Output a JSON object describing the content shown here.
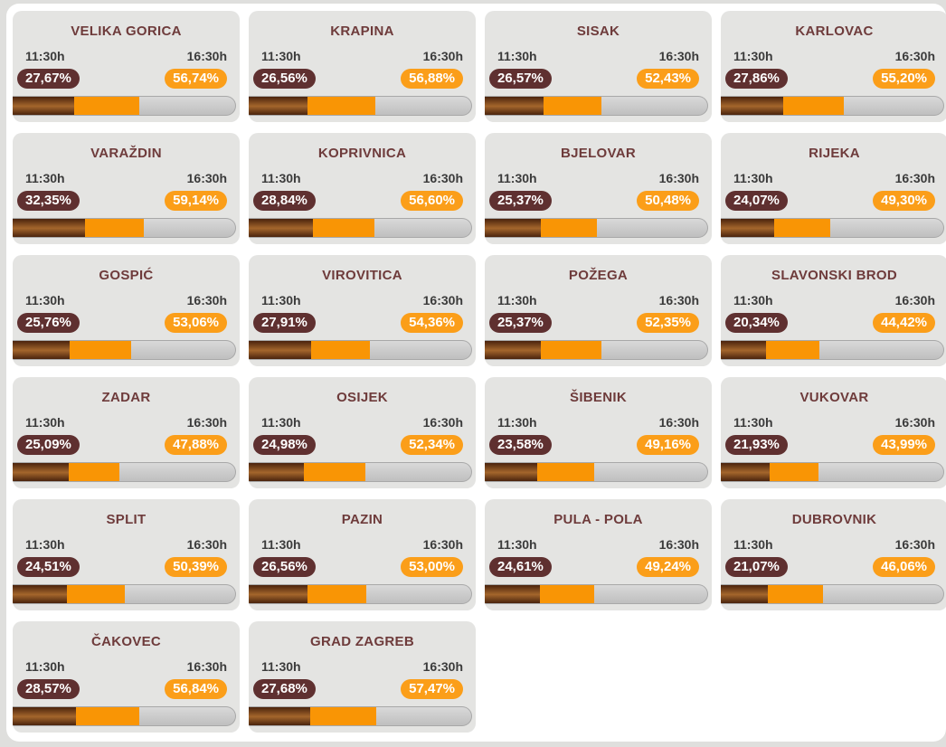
{
  "colors": {
    "page_bg": "#dfdfdd",
    "panel_bg": "#ffffff",
    "card_bg": "#e4e4e2",
    "title_text": "#6e3b3b",
    "time_text": "#3b3b3b",
    "badge_text": "#ffffff",
    "badge_early_bg": "#5f3030",
    "badge_late_bg": "#fb9e19",
    "bar_late": "#f99505",
    "bar_early_dark": "#4a230d",
    "bar_early_light": "#a4662c",
    "bar_track_light": "#d9d9d9",
    "bar_track_dark": "#bfbfbf",
    "bar_border": "#a8a8a8"
  },
  "times": {
    "early_label": "11:30h",
    "late_label": "16:30h"
  },
  "cards": [
    {
      "name": "VELIKA GORICA",
      "early": "27,67%",
      "late": "56,74%"
    },
    {
      "name": "KRAPINA",
      "early": "26,56%",
      "late": "56,88%"
    },
    {
      "name": "SISAK",
      "early": "26,57%",
      "late": "52,43%"
    },
    {
      "name": "KARLOVAC",
      "early": "27,86%",
      "late": "55,20%"
    },
    {
      "name": "VARAŽDIN",
      "early": "32,35%",
      "late": "59,14%"
    },
    {
      "name": "KOPRIVNICA",
      "early": "28,84%",
      "late": "56,60%"
    },
    {
      "name": "BJELOVAR",
      "early": "25,37%",
      "late": "50,48%"
    },
    {
      "name": "RIJEKA",
      "early": "24,07%",
      "late": "49,30%"
    },
    {
      "name": "GOSPIĆ",
      "early": "25,76%",
      "late": "53,06%"
    },
    {
      "name": "VIROVITICA",
      "early": "27,91%",
      "late": "54,36%"
    },
    {
      "name": "POŽEGA",
      "early": "25,37%",
      "late": "52,35%"
    },
    {
      "name": "SLAVONSKI BROD",
      "early": "20,34%",
      "late": "44,42%"
    },
    {
      "name": "ZADAR",
      "early": "25,09%",
      "late": "47,88%"
    },
    {
      "name": "OSIJEK",
      "early": "24,98%",
      "late": "52,34%"
    },
    {
      "name": "ŠIBENIK",
      "early": "23,58%",
      "late": "49,16%"
    },
    {
      "name": "VUKOVAR",
      "early": "21,93%",
      "late": "43,99%"
    },
    {
      "name": "SPLIT",
      "early": "24,51%",
      "late": "50,39%"
    },
    {
      "name": "PAZIN",
      "early": "26,56%",
      "late": "53,00%"
    },
    {
      "name": "PULA - POLA",
      "early": "24,61%",
      "late": "49,24%"
    },
    {
      "name": "DUBROVNIK",
      "early": "21,07%",
      "late": "46,06%"
    },
    {
      "name": "ČAKOVEC",
      "early": "28,57%",
      "late": "56,84%"
    },
    {
      "name": "GRAD ZAGREB",
      "early": "27,68%",
      "late": "57,47%"
    }
  ],
  "chart_data": {
    "type": "bar",
    "subtype": "horizontal-progress-cards",
    "title": "",
    "unit": "%",
    "xlim": [
      0,
      100
    ],
    "legend": [
      "11:30h",
      "16:30h"
    ],
    "categories": [
      "VELIKA GORICA",
      "KRAPINA",
      "SISAK",
      "KARLOVAC",
      "VARAŽDIN",
      "KOPRIVNICA",
      "BJELOVAR",
      "RIJEKA",
      "GOSPIĆ",
      "VIROVITICA",
      "POŽEGA",
      "SLAVONSKI BROD",
      "ZADAR",
      "OSIJEK",
      "ŠIBENIK",
      "VUKOVAR",
      "SPLIT",
      "PAZIN",
      "PULA - POLA",
      "DUBROVNIK",
      "ČAKOVEC",
      "GRAD ZAGREB"
    ],
    "series": [
      {
        "name": "11:30h",
        "values": [
          27.67,
          26.56,
          26.57,
          27.86,
          32.35,
          28.84,
          25.37,
          24.07,
          25.76,
          27.91,
          25.37,
          20.34,
          25.09,
          24.98,
          23.58,
          21.93,
          24.51,
          26.56,
          24.61,
          21.07,
          28.57,
          27.68
        ]
      },
      {
        "name": "16:30h",
        "values": [
          56.74,
          56.88,
          52.43,
          55.2,
          59.14,
          56.6,
          50.48,
          49.3,
          53.06,
          54.36,
          52.35,
          44.42,
          47.88,
          52.34,
          49.16,
          43.99,
          50.39,
          53.0,
          49.24,
          46.06,
          56.84,
          57.47
        ]
      }
    ]
  }
}
